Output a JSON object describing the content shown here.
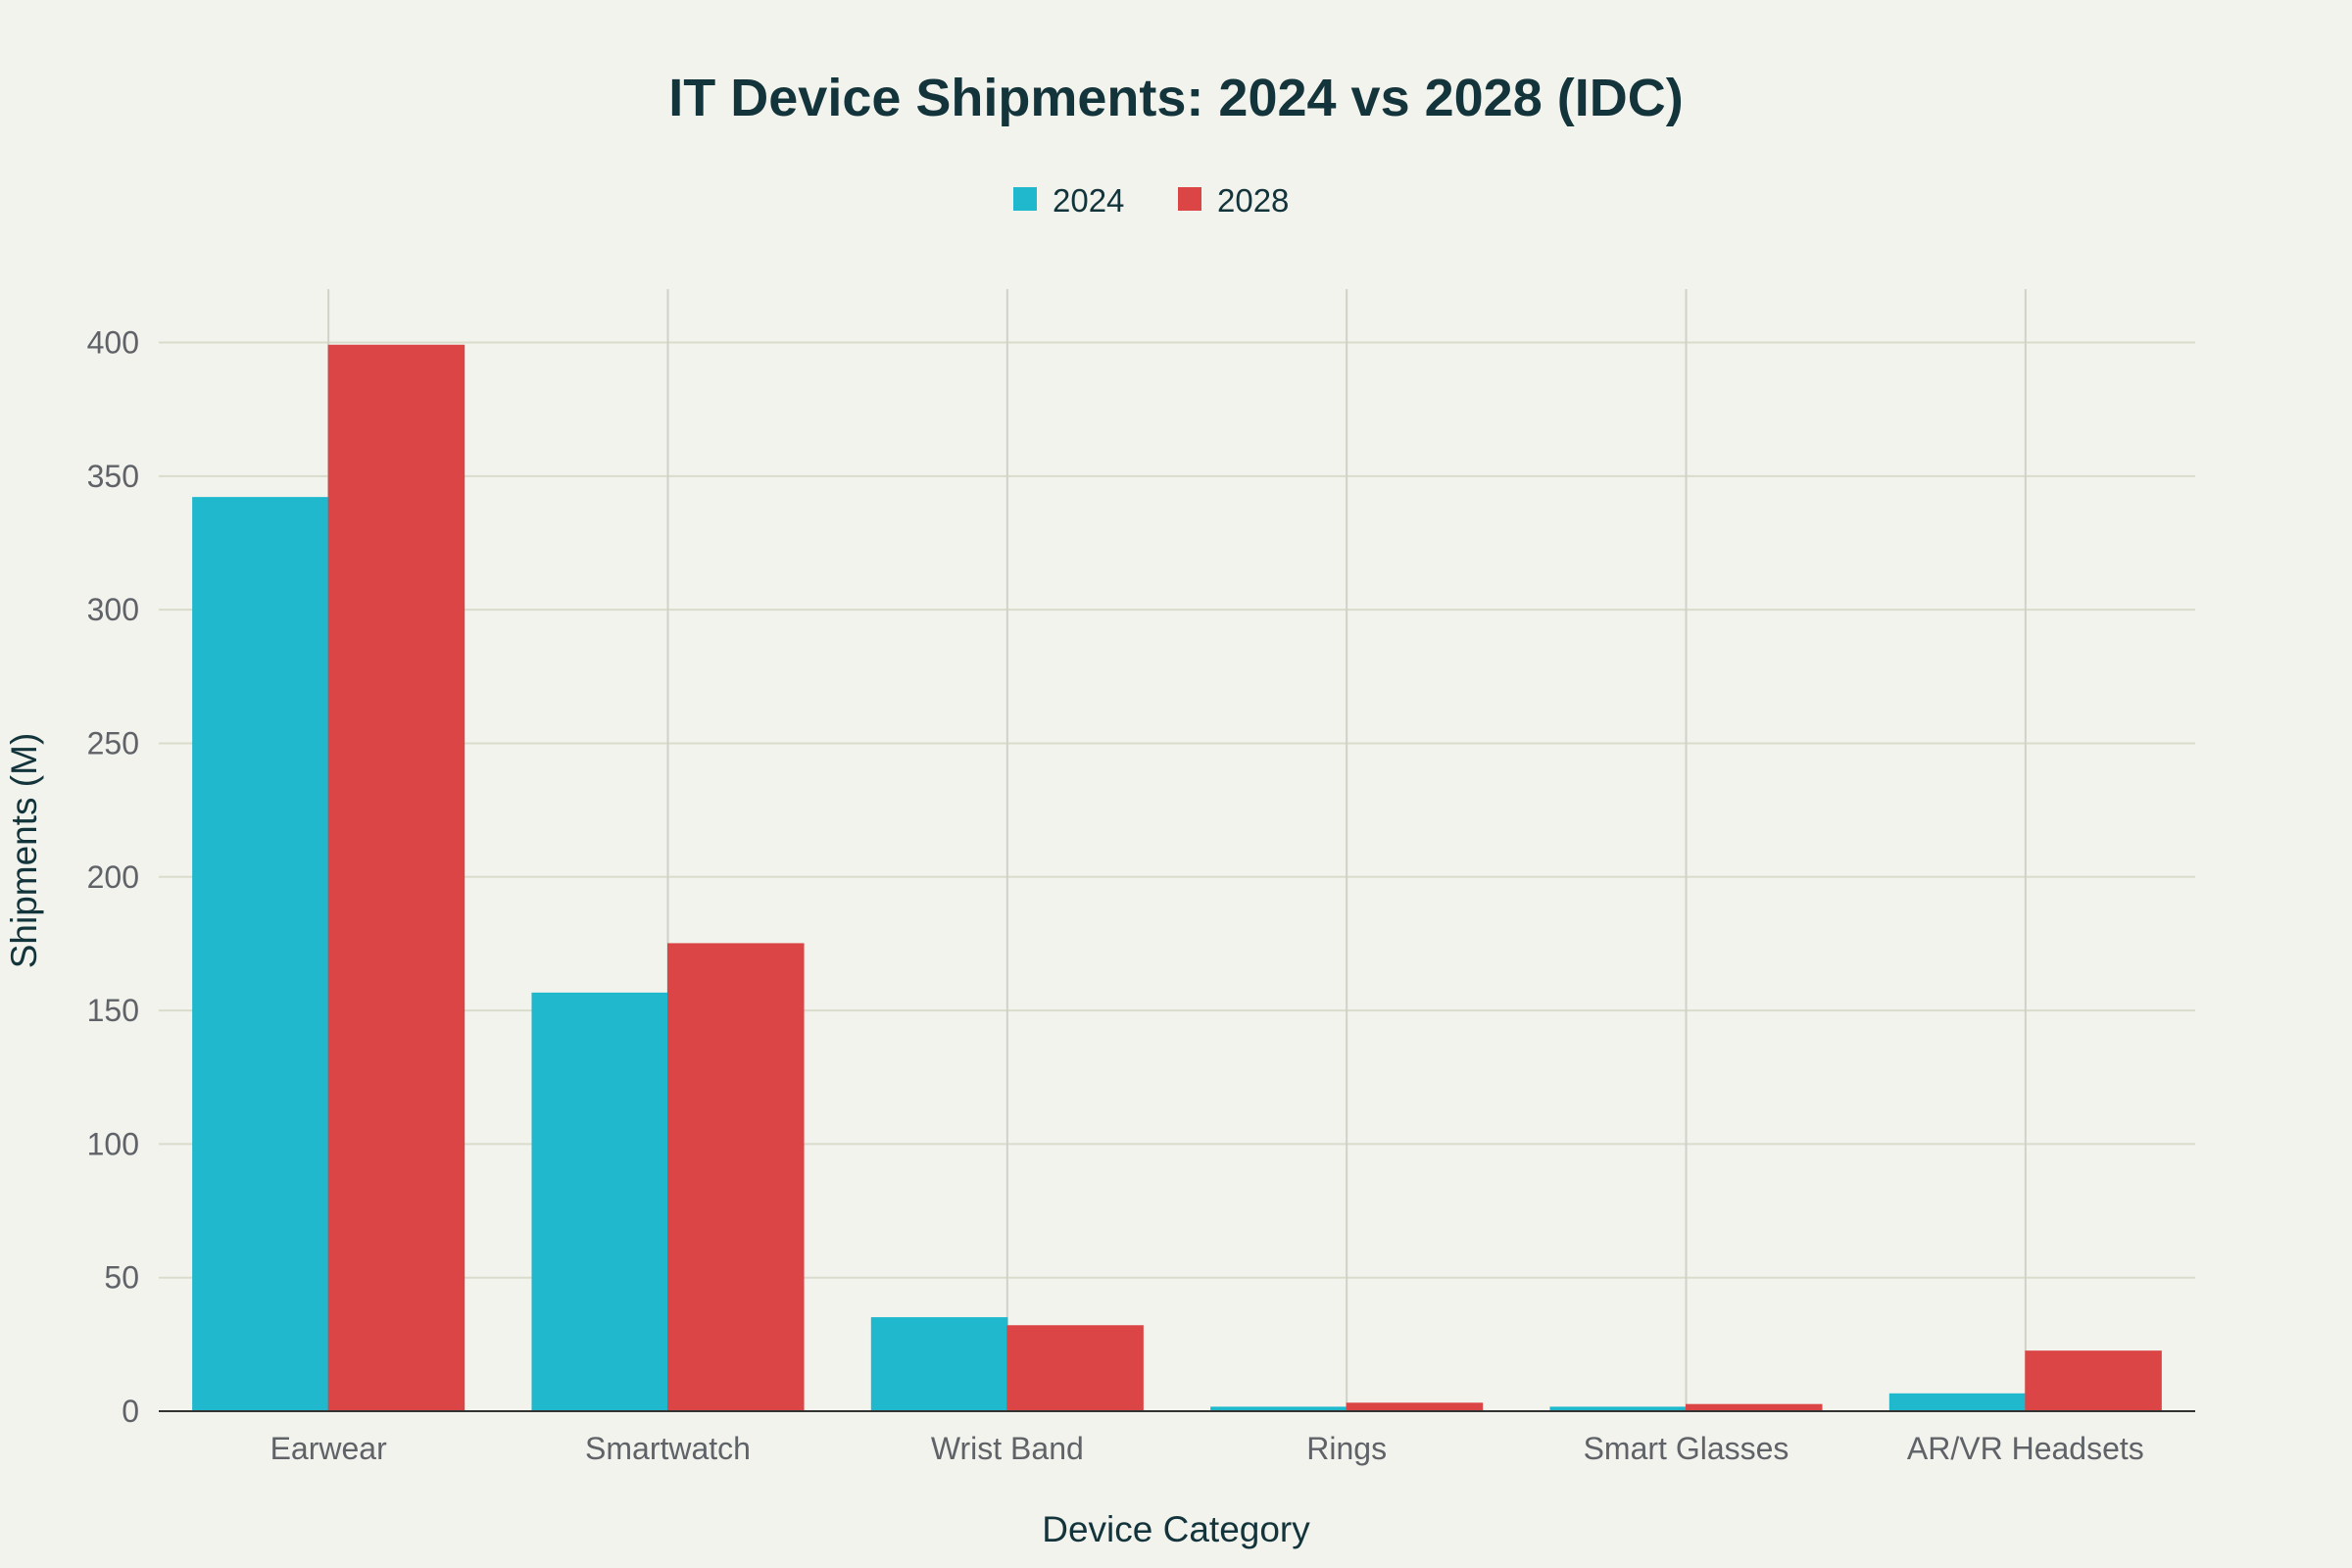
{
  "chart_data": {
    "type": "bar",
    "title": "IT Device Shipments: 2024 vs 2028 (IDC)",
    "xlabel": "Device Category",
    "ylabel": "Shipments (M)",
    "categories": [
      "Earwear",
      "Smartwatch",
      "Wrist Band",
      "Rings",
      "Smart Glasses",
      "AR/VR Headsets"
    ],
    "series": [
      {
        "name": "2024",
        "color": "#1fb8cd",
        "values": [
          342.0,
          156.5,
          35.0,
          1.5,
          1.5,
          6.5
        ]
      },
      {
        "name": "2028",
        "color": "#db4545",
        "values": [
          399.0,
          175.0,
          32.0,
          3.0,
          2.5,
          22.5
        ]
      }
    ],
    "ylim": [
      0,
      420
    ],
    "yticks": [
      0,
      50,
      100,
      150,
      200,
      250,
      300,
      350,
      400
    ],
    "grid": true,
    "legend": "top-center"
  }
}
